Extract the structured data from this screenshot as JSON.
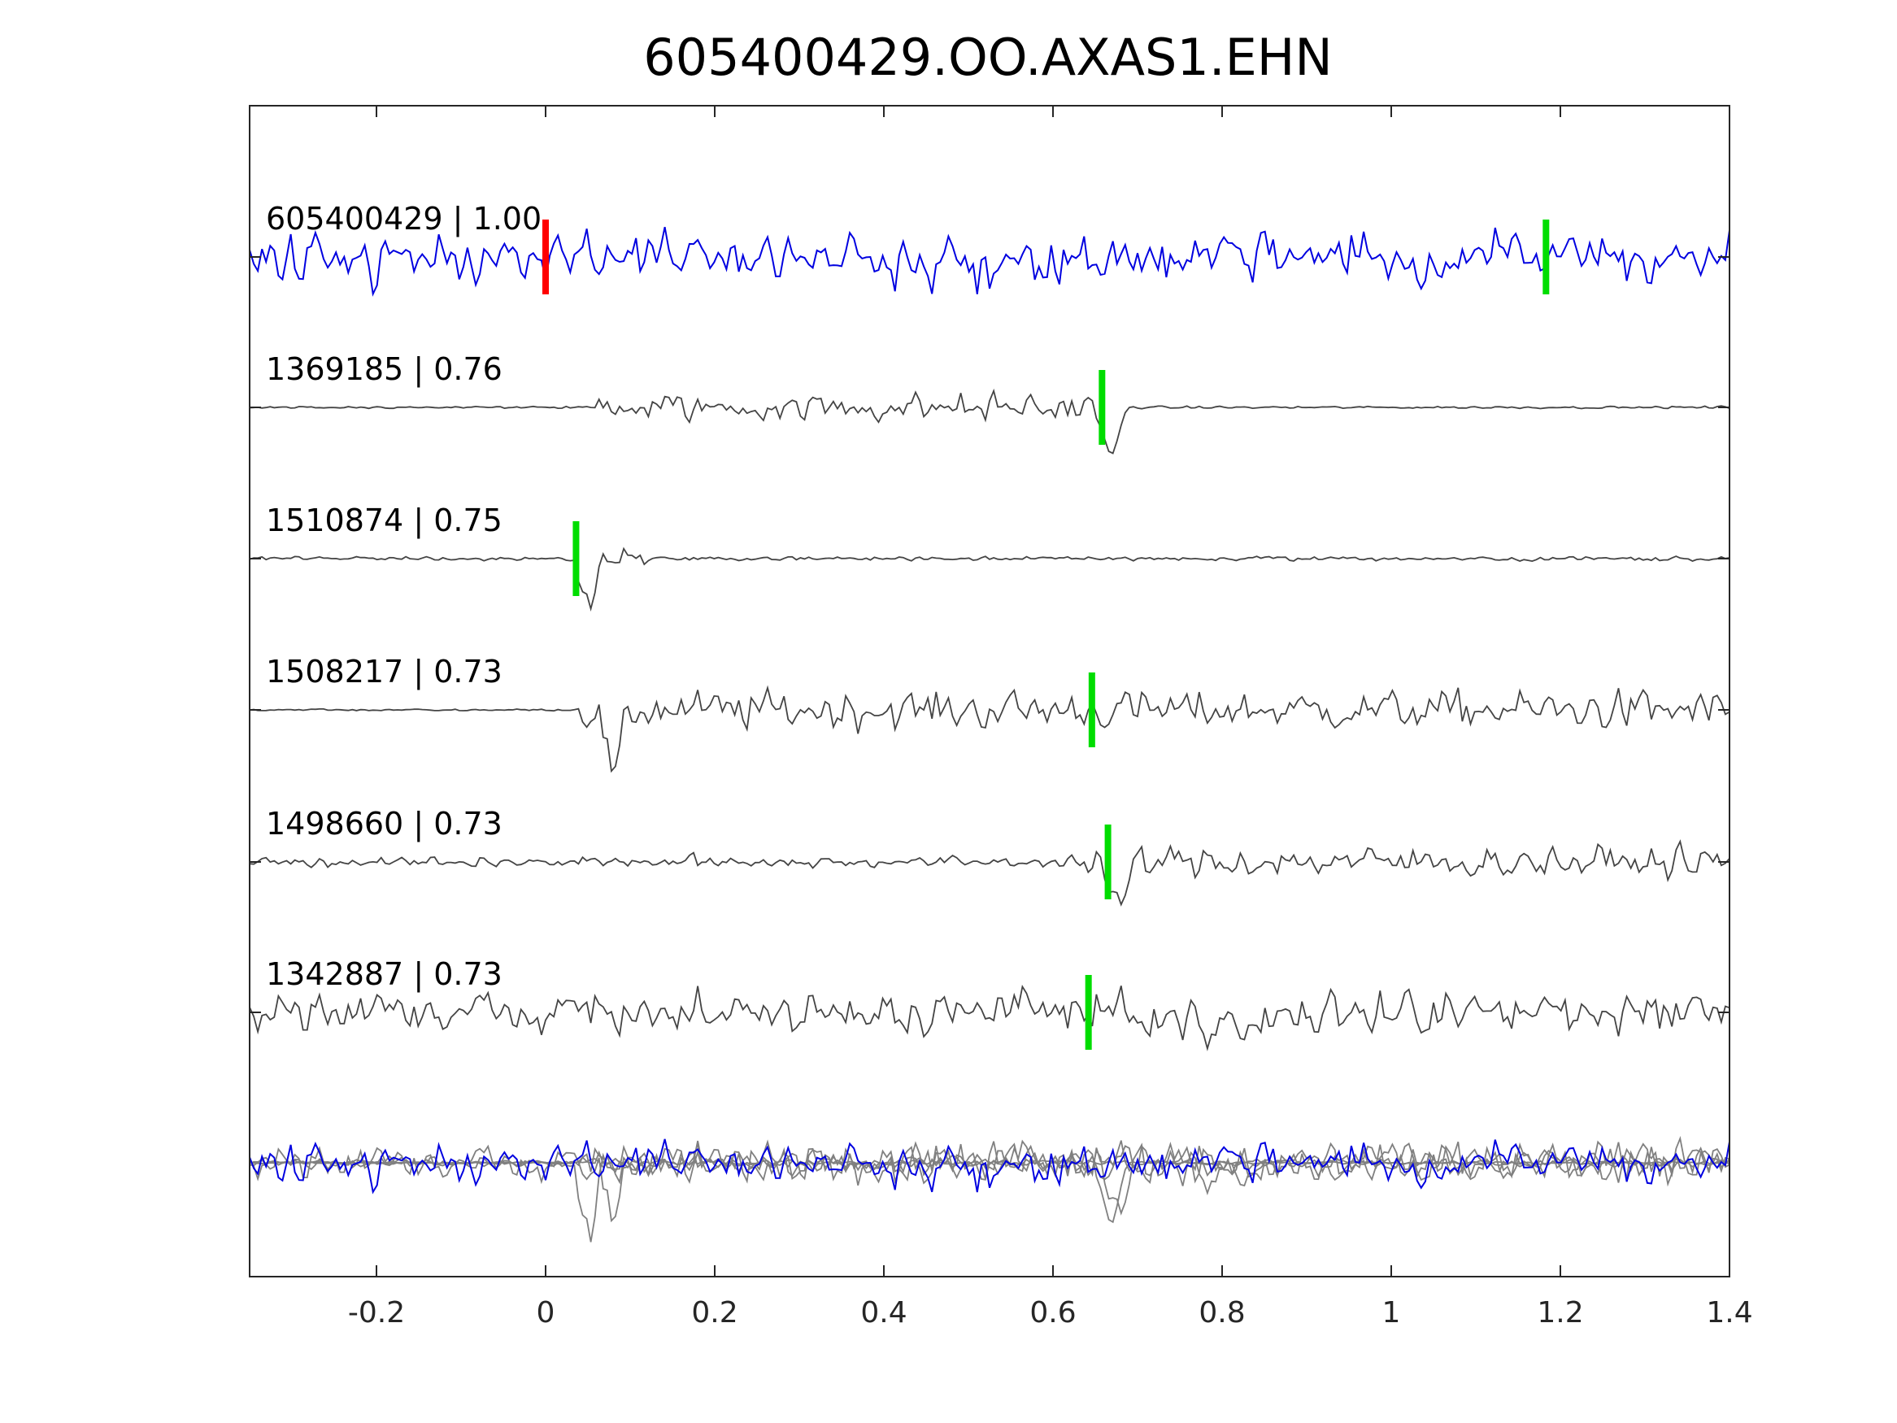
{
  "chart_data": {
    "type": "line",
    "title": "605400429.OO.AXAS1.EHN",
    "xlim": [
      -0.35,
      1.4
    ],
    "xticks": [
      "-0.2",
      "0",
      "0.2",
      "0.4",
      "0.6",
      "0.8",
      "1",
      "1.2",
      "1.4"
    ],
    "xtick_values": [
      -0.2,
      0,
      0.2,
      0.4,
      0.6,
      0.8,
      1,
      1.2,
      1.4
    ],
    "xlabel": "",
    "ylabel": "",
    "grid": false,
    "colors": {
      "reference": "#0000e0",
      "traces": "#444444",
      "overlay": "#808080",
      "reference_pick": "#ff0000",
      "pick": "#00dd00",
      "axis": "#262626"
    },
    "traces": [
      {
        "label": "605400429 | 1.00",
        "id": "605400429",
        "cc": "1.00",
        "reference": true,
        "picks": [
          {
            "t": 0.0,
            "color": "red"
          },
          {
            "t": 1.183,
            "color": "green"
          }
        ],
        "seed": 11,
        "amp": 1.0,
        "noise": 1.0,
        "event": null
      },
      {
        "label": "1369185 | 0.76",
        "id": "1369185",
        "cc": "0.76",
        "reference": false,
        "picks": [
          {
            "t": 0.658,
            "color": "green"
          }
        ],
        "seed": 23,
        "amp": 0.55,
        "noise": 0.08,
        "event": {
          "onset": 0.06,
          "end": 0.66,
          "dip": 0.668
        }
      },
      {
        "label": "1510874 | 0.75",
        "id": "1510874",
        "cc": "0.75",
        "reference": false,
        "picks": [
          {
            "t": 0.036,
            "color": "green"
          }
        ],
        "seed": 37,
        "amp": 0.45,
        "noise": 0.18,
        "event": {
          "onset": 0.03,
          "end": 0.12,
          "dip": 0.05
        }
      },
      {
        "label": "1508217 | 0.73",
        "id": "1508217",
        "cc": "0.73",
        "reference": false,
        "picks": [
          {
            "t": 0.646,
            "color": "green"
          }
        ],
        "seed": 41,
        "amp": 0.75,
        "noise": 0.05,
        "event": {
          "onset": 0.03,
          "end": 1.4,
          "dip": 0.08
        }
      },
      {
        "label": "1498660 | 0.73",
        "id": "1498660",
        "cc": "0.73",
        "reference": false,
        "picks": [
          {
            "t": 0.665,
            "color": "green"
          }
        ],
        "seed": 53,
        "amp": 0.6,
        "noise": 0.35,
        "event": {
          "onset": 0.62,
          "end": 1.4,
          "dip": 0.675
        }
      },
      {
        "label": "1342887 | 0.73",
        "id": "1342887",
        "cc": "0.73",
        "reference": false,
        "picks": [
          {
            "t": 0.642,
            "color": "green"
          }
        ],
        "seed": 67,
        "amp": 0.85,
        "noise": 0.9,
        "event": {
          "onset": 0.62,
          "end": 0.9,
          "dip": 0.78
        }
      }
    ],
    "overlay": {
      "description_visible": false
    }
  }
}
